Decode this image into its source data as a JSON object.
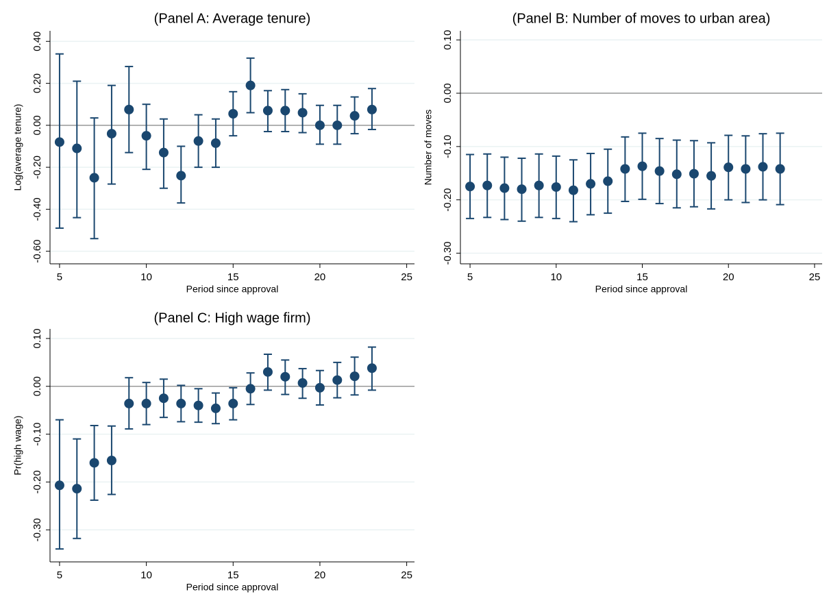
{
  "chart_data": [
    {
      "type": "scatter",
      "title": "(Panel A: Average tenure)",
      "x_label": "Period since approval",
      "y_label": "Log(average tenure)",
      "x": [
        5,
        6,
        7,
        8,
        9,
        10,
        11,
        12,
        13,
        14,
        15,
        16,
        17,
        18,
        19,
        20,
        21,
        22,
        23
      ],
      "values": [
        -0.08,
        -0.11,
        -0.25,
        -0.04,
        0.075,
        -0.05,
        -0.13,
        -0.24,
        -0.075,
        -0.085,
        0.055,
        0.19,
        0.07,
        0.07,
        0.06,
        0.0,
        0.0,
        0.045,
        0.075
      ],
      "lower": [
        -0.49,
        -0.44,
        -0.54,
        -0.28,
        -0.13,
        -0.21,
        -0.3,
        -0.37,
        -0.2,
        -0.2,
        -0.05,
        0.06,
        -0.03,
        -0.03,
        -0.035,
        -0.09,
        -0.09,
        -0.04,
        -0.02
      ],
      "upper": [
        0.34,
        0.21,
        0.035,
        0.19,
        0.28,
        0.1,
        0.03,
        -0.1,
        0.05,
        0.03,
        0.16,
        0.32,
        0.165,
        0.17,
        0.15,
        0.095,
        0.095,
        0.135,
        0.175
      ],
      "color": "#1a476f",
      "hline": 0,
      "grid": true,
      "xlim": [
        4.45,
        25.45
      ],
      "xticks": [
        5,
        10,
        15,
        20,
        25
      ],
      "ylim": [
        -0.66,
        0.45
      ],
      "yticks": [
        {
          "value": -0.6,
          "label": "-0.60"
        },
        {
          "value": -0.4,
          "label": "-0.40"
        },
        {
          "value": -0.2,
          "label": "-0.20"
        },
        {
          "value": 0,
          "label": "0.00"
        },
        {
          "value": 0.2,
          "label": "0.20"
        },
        {
          "value": 0.4,
          "label": "0.40"
        }
      ]
    },
    {
      "type": "scatter",
      "title": "(Panel B: Number of moves to urban area)",
      "x_label": "Period since approval",
      "y_label": "Number of moves",
      "x": [
        5,
        6,
        7,
        8,
        9,
        10,
        11,
        12,
        13,
        14,
        15,
        16,
        17,
        18,
        19,
        20,
        21,
        22,
        23
      ],
      "values": [
        -0.175,
        -0.173,
        -0.178,
        -0.18,
        -0.173,
        -0.176,
        -0.182,
        -0.17,
        -0.165,
        -0.142,
        -0.137,
        -0.146,
        -0.152,
        -0.151,
        -0.155,
        -0.139,
        -0.142,
        -0.138,
        -0.142
      ],
      "lower": [
        -0.235,
        -0.233,
        -0.237,
        -0.24,
        -0.233,
        -0.235,
        -0.241,
        -0.228,
        -0.225,
        -0.203,
        -0.199,
        -0.207,
        -0.215,
        -0.213,
        -0.217,
        -0.2,
        -0.205,
        -0.2,
        -0.209
      ],
      "upper": [
        -0.115,
        -0.114,
        -0.12,
        -0.122,
        -0.114,
        -0.118,
        -0.125,
        -0.113,
        -0.105,
        -0.082,
        -0.075,
        -0.085,
        -0.088,
        -0.089,
        -0.093,
        -0.079,
        -0.08,
        -0.076,
        -0.075
      ],
      "color": "#1a476f",
      "hline": 0,
      "grid": true,
      "xlim": [
        4.44,
        25.44
      ],
      "xticks": [
        5,
        10,
        15,
        20,
        25
      ],
      "ylim": [
        -0.32,
        0.117
      ],
      "yticks": [
        {
          "value": -0.3,
          "label": "-0.30"
        },
        {
          "value": -0.2,
          "label": "-0.20"
        },
        {
          "value": -0.1,
          "label": "-0.10"
        },
        {
          "value": 0,
          "label": "0.00"
        },
        {
          "value": 0.1,
          "label": "0.10"
        }
      ]
    },
    {
      "type": "scatter",
      "title": "(Panel C: High wage firm)",
      "x_label": "Period since approval",
      "y_label": "Pr(high wage)",
      "x": [
        5,
        6,
        7,
        8,
        9,
        10,
        11,
        12,
        13,
        14,
        15,
        16,
        17,
        18,
        19,
        20,
        21,
        22,
        23
      ],
      "values": [
        -0.207,
        -0.214,
        -0.16,
        -0.155,
        -0.036,
        -0.036,
        -0.025,
        -0.036,
        -0.04,
        -0.046,
        -0.036,
        -0.005,
        0.03,
        0.02,
        0.007,
        -0.003,
        0.013,
        0.021,
        0.038
      ],
      "lower": [
        -0.34,
        -0.318,
        -0.238,
        -0.226,
        -0.089,
        -0.08,
        -0.065,
        -0.074,
        -0.075,
        -0.078,
        -0.07,
        -0.038,
        -0.008,
        -0.017,
        -0.025,
        -0.039,
        -0.024,
        -0.018,
        -0.008
      ],
      "upper": [
        -0.07,
        -0.11,
        -0.082,
        -0.083,
        0.018,
        0.008,
        0.015,
        0.002,
        -0.005,
        -0.014,
        -0.003,
        0.028,
        0.067,
        0.055,
        0.037,
        0.033,
        0.05,
        0.061,
        0.082
      ],
      "color": "#1a476f",
      "hline": 0,
      "grid": true,
      "xlim": [
        4.45,
        25.45
      ],
      "xticks": [
        5,
        10,
        15,
        20,
        25
      ],
      "ylim": [
        -0.367,
        0.12
      ],
      "yticks": [
        {
          "value": -0.3,
          "label": "-0.30"
        },
        {
          "value": -0.2,
          "label": "-0.20"
        },
        {
          "value": -0.1,
          "label": "-0.10"
        },
        {
          "value": 0,
          "label": "0.00"
        },
        {
          "value": 0.1,
          "label": "0.10"
        }
      ]
    }
  ]
}
